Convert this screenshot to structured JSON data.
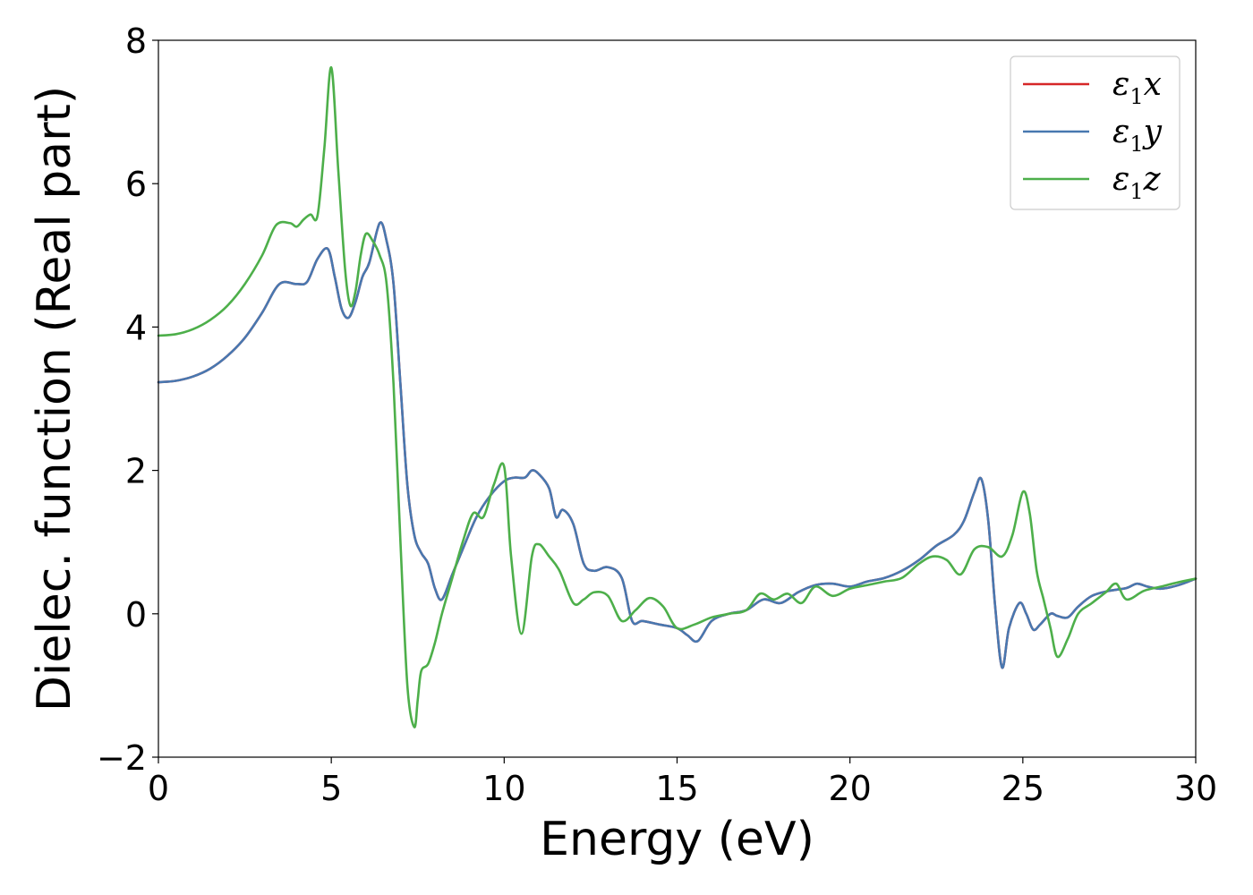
{
  "chart_data": {
    "type": "line",
    "xlabel": "Energy (eV)",
    "ylabel": "Dielec. function (Real part)",
    "xlim": [
      0,
      30
    ],
    "ylim": [
      -2,
      8
    ],
    "xticks": [
      0,
      5,
      10,
      15,
      20,
      25,
      30
    ],
    "yticks": [
      -2,
      0,
      2,
      4,
      6,
      8
    ],
    "ytick_labels": [
      "−2",
      "0",
      "2",
      "4",
      "6",
      "8"
    ],
    "grid": false,
    "legend_position": "top-right",
    "series": [
      {
        "name": "ε₁x",
        "legend_main": "ε",
        "legend_sub": "1",
        "legend_tail": "x",
        "color": "#d62728",
        "x": [
          0,
          0.5,
          1,
          1.5,
          2,
          2.5,
          3,
          3.5,
          4,
          4.3,
          4.6,
          4.9,
          5.1,
          5.3,
          5.5,
          5.7,
          5.9,
          6.1,
          6.4,
          6.6,
          6.8,
          7.0,
          7.2,
          7.4,
          7.6,
          7.8,
          8.0,
          8.2,
          8.5,
          8.8,
          9.2,
          9.6,
          10.0,
          10.3,
          10.6,
          10.8,
          11.0,
          11.3,
          11.5,
          11.7,
          12.0,
          12.3,
          12.6,
          13.0,
          13.4,
          13.7,
          14.0,
          14.5,
          15.0,
          15.3,
          15.6,
          16.0,
          16.5,
          17.0,
          17.5,
          18.0,
          18.5,
          19.0,
          19.5,
          20.0,
          20.5,
          21.0,
          21.5,
          22.0,
          22.5,
          23.0,
          23.3,
          23.6,
          23.8,
          24.0,
          24.2,
          24.4,
          24.6,
          24.9,
          25.1,
          25.3,
          25.5,
          25.8,
          26.0,
          26.3,
          26.6,
          27.0,
          27.5,
          28.0,
          28.3,
          28.6,
          29.0,
          29.5,
          30.0
        ],
        "y": [
          3.23,
          3.25,
          3.31,
          3.42,
          3.6,
          3.85,
          4.2,
          4.6,
          4.6,
          4.63,
          4.95,
          5.09,
          4.7,
          4.25,
          4.13,
          4.35,
          4.7,
          4.9,
          5.45,
          5.2,
          4.6,
          3.2,
          1.8,
          1.1,
          0.85,
          0.7,
          0.35,
          0.2,
          0.55,
          0.9,
          1.35,
          1.65,
          1.85,
          1.9,
          1.9,
          2.0,
          1.95,
          1.75,
          1.35,
          1.45,
          1.25,
          0.7,
          0.6,
          0.65,
          0.5,
          -0.1,
          -0.1,
          -0.15,
          -0.2,
          -0.3,
          -0.38,
          -0.1,
          0.0,
          0.05,
          0.2,
          0.15,
          0.3,
          0.4,
          0.42,
          0.38,
          0.45,
          0.5,
          0.6,
          0.75,
          0.95,
          1.1,
          1.3,
          1.7,
          1.88,
          1.3,
          0.1,
          -0.75,
          -0.2,
          0.15,
          0.0,
          -0.22,
          -0.15,
          0.0,
          -0.03,
          -0.05,
          0.1,
          0.25,
          0.32,
          0.36,
          0.42,
          0.38,
          0.35,
          0.4,
          0.49
        ]
      },
      {
        "name": "ε₁y",
        "legend_main": "ε",
        "legend_sub": "1",
        "legend_tail": "y",
        "color": "#4878b0",
        "x": [
          0,
          0.5,
          1,
          1.5,
          2,
          2.5,
          3,
          3.5,
          4,
          4.3,
          4.6,
          4.9,
          5.1,
          5.3,
          5.5,
          5.7,
          5.9,
          6.1,
          6.4,
          6.6,
          6.8,
          7.0,
          7.2,
          7.4,
          7.6,
          7.8,
          8.0,
          8.2,
          8.5,
          8.8,
          9.2,
          9.6,
          10.0,
          10.3,
          10.6,
          10.8,
          11.0,
          11.3,
          11.5,
          11.7,
          12.0,
          12.3,
          12.6,
          13.0,
          13.4,
          13.7,
          14.0,
          14.5,
          15.0,
          15.3,
          15.6,
          16.0,
          16.5,
          17.0,
          17.5,
          18.0,
          18.5,
          19.0,
          19.5,
          20.0,
          20.5,
          21.0,
          21.5,
          22.0,
          22.5,
          23.0,
          23.3,
          23.6,
          23.8,
          24.0,
          24.2,
          24.4,
          24.6,
          24.9,
          25.1,
          25.3,
          25.5,
          25.8,
          26.0,
          26.3,
          26.6,
          27.0,
          27.5,
          28.0,
          28.3,
          28.6,
          29.0,
          29.5,
          30.0
        ],
        "y": [
          3.23,
          3.25,
          3.31,
          3.42,
          3.6,
          3.85,
          4.2,
          4.6,
          4.6,
          4.63,
          4.95,
          5.09,
          4.7,
          4.25,
          4.13,
          4.35,
          4.7,
          4.9,
          5.45,
          5.2,
          4.6,
          3.2,
          1.8,
          1.1,
          0.85,
          0.7,
          0.35,
          0.2,
          0.55,
          0.9,
          1.35,
          1.65,
          1.85,
          1.9,
          1.9,
          2.0,
          1.95,
          1.75,
          1.35,
          1.45,
          1.25,
          0.7,
          0.6,
          0.65,
          0.5,
          -0.1,
          -0.1,
          -0.15,
          -0.2,
          -0.3,
          -0.38,
          -0.1,
          0.0,
          0.05,
          0.2,
          0.15,
          0.3,
          0.4,
          0.42,
          0.38,
          0.45,
          0.5,
          0.6,
          0.75,
          0.95,
          1.1,
          1.3,
          1.7,
          1.88,
          1.3,
          0.1,
          -0.75,
          -0.2,
          0.15,
          0.0,
          -0.22,
          -0.15,
          0.0,
          -0.03,
          -0.05,
          0.1,
          0.25,
          0.32,
          0.36,
          0.42,
          0.38,
          0.35,
          0.4,
          0.49
        ]
      },
      {
        "name": "ε₁z",
        "legend_main": "ε",
        "legend_sub": "1",
        "legend_tail": "z",
        "color": "#4daf4a",
        "x": [
          0,
          0.5,
          1,
          1.5,
          2,
          2.5,
          3,
          3.4,
          3.8,
          4.0,
          4.2,
          4.4,
          4.6,
          4.8,
          5.0,
          5.2,
          5.4,
          5.55,
          5.7,
          5.85,
          6.0,
          6.2,
          6.4,
          6.6,
          6.8,
          7.0,
          7.2,
          7.4,
          7.5,
          7.6,
          7.8,
          8.0,
          8.2,
          8.5,
          8.8,
          9.1,
          9.4,
          9.7,
          10.0,
          10.2,
          10.5,
          10.8,
          11.0,
          11.3,
          11.6,
          12.0,
          12.3,
          12.6,
          13.0,
          13.4,
          13.8,
          14.2,
          14.6,
          15.0,
          15.5,
          16.0,
          16.5,
          17.0,
          17.4,
          17.8,
          18.2,
          18.6,
          19.0,
          19.5,
          20.0,
          20.5,
          21.0,
          21.5,
          22.0,
          22.4,
          22.8,
          23.2,
          23.6,
          24.0,
          24.4,
          24.7,
          25.0,
          25.2,
          25.4,
          25.6,
          25.8,
          26.0,
          26.3,
          26.6,
          27.0,
          27.4,
          27.7,
          28.0,
          28.5,
          29.0,
          29.5,
          30.0
        ],
        "y": [
          3.88,
          3.9,
          3.97,
          4.1,
          4.3,
          4.6,
          5.0,
          5.42,
          5.45,
          5.4,
          5.5,
          5.57,
          5.55,
          6.5,
          7.62,
          6.2,
          4.8,
          4.3,
          4.5,
          5.0,
          5.3,
          5.2,
          5.0,
          4.6,
          3.2,
          1.0,
          -1.0,
          -1.58,
          -1.2,
          -0.8,
          -0.7,
          -0.4,
          0.0,
          0.5,
          1.0,
          1.4,
          1.35,
          1.8,
          2.05,
          0.8,
          -0.28,
          0.8,
          0.97,
          0.8,
          0.6,
          0.15,
          0.2,
          0.3,
          0.25,
          -0.1,
          0.05,
          0.22,
          0.1,
          -0.2,
          -0.15,
          -0.05,
          0.0,
          0.05,
          0.28,
          0.2,
          0.28,
          0.15,
          0.38,
          0.25,
          0.35,
          0.4,
          0.45,
          0.5,
          0.7,
          0.8,
          0.75,
          0.55,
          0.9,
          0.93,
          0.8,
          1.1,
          1.7,
          1.4,
          0.6,
          0.2,
          -0.2,
          -0.6,
          -0.35,
          0.0,
          0.15,
          0.3,
          0.42,
          0.2,
          0.32,
          0.38,
          0.44,
          0.49
        ]
      }
    ]
  }
}
